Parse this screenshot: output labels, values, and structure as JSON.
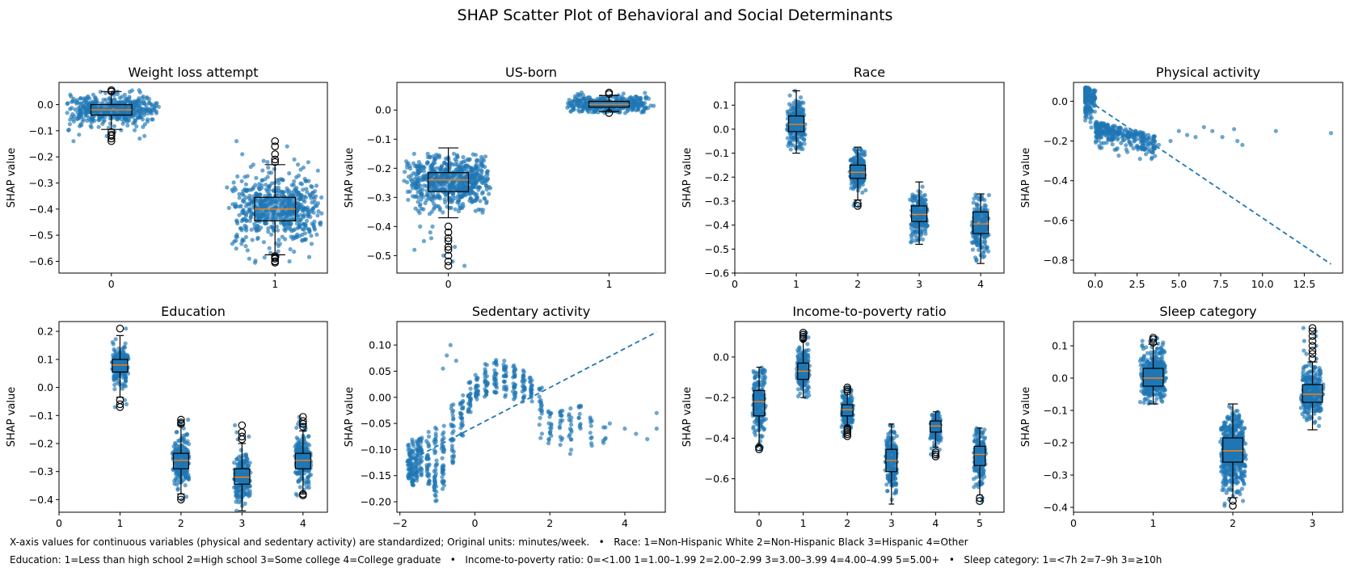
{
  "figure": {
    "title": "SHAP Scatter Plot of Behavioral and Social Determinants",
    "ylabel": "SHAP value",
    "footnote_line1": "X-axis values for continuous variables (physical and sedentary activity) are standardized; Original units: minutes/week.   •   Race: 1=Non-Hispanic White 2=Non-Hispanic Black 3=Hispanic 4=Other",
    "footnote_line2": "Education: 1=Less than high school 2=High school 3=Some college 4=College graduate   •   Income-to-poverty ratio: 0=<1.00 1=1.00–1.99 2=2.00–2.99 3=3.00–3.99 4=4.00–4.99 5=5.00+   •   Sleep category: 1=<7h 2=7–9h 3=≥10h"
  },
  "colors": {
    "points": "#1f77b4",
    "median": "#ff7f0e",
    "box": "#000000"
  },
  "chart_data": [
    {
      "type": "scatter",
      "subtype": "box-jitter",
      "title": "Weight loss attempt",
      "xlim": [
        -0.32,
        1.32
      ],
      "ylim": [
        -0.645,
        0.085
      ],
      "xticks": [
        0,
        1
      ],
      "xtick_labels": [
        "0",
        "1"
      ],
      "yticks": [
        0.0,
        -0.1,
        -0.2,
        -0.3,
        -0.4,
        -0.5,
        -0.6
      ],
      "ytick_labels": [
        "0.0",
        "−0.1",
        "−0.2",
        "−0.3",
        "−0.4",
        "−0.5",
        "−0.6"
      ],
      "groups": [
        {
          "x": 0,
          "median": -0.02,
          "q1": -0.04,
          "q3": 0.0,
          "whisker_low": -0.095,
          "whisker_high": 0.05,
          "pt_min": -0.135,
          "pt_max": 0.06,
          "count": 450,
          "jitter": 0.3,
          "out_low": [
            -0.12,
            -0.13,
            -0.14,
            -0.115,
            -0.105
          ],
          "out_high": [
            0.055,
            0.05
          ]
        },
        {
          "x": 1,
          "median": -0.4,
          "q1": -0.445,
          "q3": -0.355,
          "whisker_low": -0.575,
          "whisker_high": -0.23,
          "pt_min": -0.61,
          "pt_max": -0.14,
          "count": 550,
          "jitter": 0.3,
          "out_low": [
            -0.58,
            -0.59,
            -0.6,
            -0.605,
            -0.585
          ],
          "out_high": [
            -0.14,
            -0.16,
            -0.19,
            -0.21,
            -0.22
          ]
        }
      ]
    },
    {
      "type": "scatter",
      "subtype": "box-jitter",
      "title": "US-born",
      "xlim": [
        -0.32,
        1.35
      ],
      "ylim": [
        -0.56,
        0.095
      ],
      "xticks": [
        0,
        1
      ],
      "xtick_labels": [
        "0",
        "1"
      ],
      "yticks": [
        0.0,
        -0.1,
        -0.2,
        -0.3,
        -0.4,
        -0.5
      ],
      "ytick_labels": [
        "0.0",
        "−0.1",
        "−0.2",
        "−0.3",
        "−0.4",
        "−0.5"
      ],
      "groups": [
        {
          "x": 0,
          "median": -0.24,
          "q1": -0.28,
          "q3": -0.215,
          "whisker_low": -0.37,
          "whisker_high": -0.13,
          "pt_min": -0.53,
          "pt_max": -0.15,
          "count": 600,
          "jitter": 0.28,
          "out_low": [
            -0.4,
            -0.42,
            -0.44,
            -0.45,
            -0.47,
            -0.48,
            -0.5,
            -0.52,
            -0.535
          ],
          "out_high": []
        },
        {
          "x": 1,
          "median": 0.02,
          "q1": 0.01,
          "q3": 0.03,
          "whisker_low": -0.005,
          "whisker_high": 0.05,
          "pt_min": -0.01,
          "pt_max": 0.06,
          "count": 400,
          "jitter": 0.28,
          "out_low": [
            -0.01
          ],
          "out_high": [
            0.055,
            0.06
          ]
        }
      ]
    },
    {
      "type": "scatter",
      "subtype": "box-jitter",
      "title": "Race",
      "xlim": [
        0,
        4.38
      ],
      "ylim": [
        -0.6,
        0.195
      ],
      "xticks": [
        0,
        1,
        2,
        3,
        4
      ],
      "xtick_labels": [
        "0",
        "1",
        "2",
        "3",
        "4"
      ],
      "yticks": [
        0.1,
        0.0,
        -0.1,
        -0.2,
        -0.3,
        -0.4,
        -0.5,
        -0.6
      ],
      "ytick_labels": [
        "0.1",
        "0.0",
        "−0.1",
        "−0.2",
        "−0.3",
        "−0.4",
        "−0.5",
        "−0.6"
      ],
      "groups": [
        {
          "x": 1,
          "median": 0.02,
          "q1": -0.01,
          "q3": 0.055,
          "whisker_low": -0.1,
          "whisker_high": 0.16,
          "pt_min": -0.1,
          "pt_max": 0.16,
          "count": 260,
          "jitter": 0.16,
          "out_low": [],
          "out_high": []
        },
        {
          "x": 2,
          "median": -0.18,
          "q1": -0.205,
          "q3": -0.15,
          "whisker_low": -0.295,
          "whisker_high": -0.075,
          "pt_min": -0.32,
          "pt_max": -0.07,
          "count": 220,
          "jitter": 0.14,
          "out_low": [
            -0.31,
            -0.32
          ],
          "out_high": []
        },
        {
          "x": 3,
          "median": -0.355,
          "q1": -0.385,
          "q3": -0.32,
          "whisker_low": -0.48,
          "whisker_high": -0.22,
          "pt_min": -0.48,
          "pt_max": -0.22,
          "count": 220,
          "jitter": 0.15,
          "out_low": [],
          "out_high": []
        },
        {
          "x": 4,
          "median": -0.395,
          "q1": -0.435,
          "q3": -0.345,
          "whisker_low": -0.56,
          "whisker_high": -0.27,
          "pt_min": -0.56,
          "pt_max": -0.27,
          "count": 200,
          "jitter": 0.15,
          "out_low": [],
          "out_high": []
        }
      ]
    },
    {
      "type": "scatter",
      "subtype": "trend",
      "title": "Physical activity",
      "xlim": [
        -1.3,
        14.8
      ],
      "ylim": [
        -0.865,
        0.095
      ],
      "xticks": [
        0,
        2.5,
        5,
        7.5,
        10,
        12.5
      ],
      "xtick_labels": [
        "0.0",
        "2.5",
        "5.0",
        "7.5",
        "10.0",
        "12.5"
      ],
      "yticks": [
        0.0,
        -0.2,
        -0.4,
        -0.6,
        -0.8
      ],
      "ytick_labels": [
        "0.0",
        "−0.2",
        "−0.4",
        "−0.6",
        "−0.8"
      ],
      "trend": {
        "x": [
          0.0,
          14.1
        ],
        "y": [
          -0.02,
          -0.82
        ]
      },
      "points": [
        [
          -0.5,
          0.06
        ],
        [
          -0.4,
          0.03
        ],
        [
          -0.3,
          0.0
        ],
        [
          -0.2,
          -0.05
        ],
        [
          0.1,
          -0.12
        ],
        [
          0.5,
          -0.15
        ],
        [
          1.0,
          -0.18
        ],
        [
          2.0,
          -0.18
        ],
        [
          3.0,
          -0.17
        ],
        [
          3.8,
          -0.22
        ],
        [
          4.5,
          -0.2
        ],
        [
          5.0,
          -0.15
        ],
        [
          5.5,
          -0.17
        ],
        [
          6.0,
          -0.18
        ],
        [
          6.5,
          -0.13
        ],
        [
          7.0,
          -0.15
        ],
        [
          7.6,
          -0.18
        ],
        [
          8.3,
          -0.14
        ],
        [
          8.5,
          -0.2
        ],
        [
          8.8,
          -0.22
        ],
        [
          10.8,
          -0.15
        ],
        [
          14.1,
          -0.16
        ]
      ]
    },
    {
      "type": "scatter",
      "subtype": "box-jitter",
      "title": "Education",
      "xlim": [
        0,
        4.4
      ],
      "ylim": [
        -0.445,
        0.235
      ],
      "xticks": [
        0,
        1,
        2,
        3,
        4
      ],
      "xtick_labels": [
        "0",
        "1",
        "2",
        "3",
        "4"
      ],
      "yticks": [
        0.2,
        0.1,
        0.0,
        -0.1,
        -0.2,
        -0.3,
        -0.4
      ],
      "ytick_labels": [
        "0.2",
        "0.1",
        "0.0",
        "−0.1",
        "−0.2",
        "−0.3",
        "−0.4"
      ],
      "groups": [
        {
          "x": 1,
          "median": 0.08,
          "q1": 0.055,
          "q3": 0.1,
          "whisker_low": -0.035,
          "whisker_high": 0.185,
          "pt_min": -0.07,
          "pt_max": 0.21,
          "count": 230,
          "jitter": 0.15,
          "out_low": [
            -0.045,
            -0.06,
            -0.07
          ],
          "out_high": [
            0.21
          ]
        },
        {
          "x": 2,
          "median": -0.26,
          "q1": -0.29,
          "q3": -0.235,
          "whisker_low": -0.38,
          "whisker_high": -0.135,
          "pt_min": -0.4,
          "pt_max": -0.115,
          "count": 230,
          "jitter": 0.15,
          "out_low": [
            -0.39,
            -0.4
          ],
          "out_high": [
            -0.115,
            -0.125,
            -0.13
          ]
        },
        {
          "x": 3,
          "median": -0.32,
          "q1": -0.345,
          "q3": -0.29,
          "whisker_low": -0.44,
          "whisker_high": -0.2,
          "pt_min": -0.44,
          "pt_max": -0.135,
          "count": 230,
          "jitter": 0.15,
          "out_low": [],
          "out_high": [
            -0.135,
            -0.16,
            -0.175,
            -0.185
          ]
        },
        {
          "x": 4,
          "median": -0.26,
          "q1": -0.29,
          "q3": -0.235,
          "whisker_low": -0.38,
          "whisker_high": -0.155,
          "pt_min": -0.385,
          "pt_max": -0.105,
          "count": 230,
          "jitter": 0.15,
          "out_low": [
            -0.38,
            -0.385
          ],
          "out_high": [
            -0.105,
            -0.12,
            -0.13,
            -0.14
          ]
        }
      ]
    },
    {
      "type": "scatter",
      "subtype": "trend",
      "title": "Sedentary activity",
      "xlim": [
        -2.08,
        5.08
      ],
      "ylim": [
        -0.22,
        0.145
      ],
      "xticks": [
        -2,
        0,
        2,
        4
      ],
      "xtick_labels": [
        "−2",
        "0",
        "2",
        "4"
      ],
      "yticks": [
        0.1,
        0.05,
        0.0,
        -0.05,
        -0.1,
        -0.15,
        -0.2
      ],
      "ytick_labels": [
        "0.10",
        "0.05",
        "0.00",
        "−0.05",
        "−0.10",
        "−0.15",
        "−0.20"
      ],
      "trend": {
        "x": [
          -1.85,
          4.85
        ],
        "y": [
          -0.125,
          0.125
        ]
      },
      "columns": [
        {
          "x": -1.75,
          "ymin": -0.16,
          "ymax": -0.09,
          "n": 34
        },
        {
          "x": -1.65,
          "ymin": -0.17,
          "ymax": -0.08,
          "n": 34
        },
        {
          "x": -1.55,
          "ymin": -0.16,
          "ymax": -0.07,
          "n": 34
        },
        {
          "x": -1.45,
          "ymin": -0.15,
          "ymax": -0.075,
          "n": 30
        },
        {
          "x": -1.25,
          "ymin": -0.17,
          "ymax": -0.065,
          "n": 30
        },
        {
          "x": -1.05,
          "ymin": -0.2,
          "ymax": -0.055,
          "n": 38
        },
        {
          "x": -0.85,
          "ymin": -0.18,
          "ymax": -0.05,
          "n": 34
        },
        {
          "x": -0.6,
          "ymin": -0.13,
          "ymax": -0.01,
          "n": 30
        },
        {
          "x": -0.35,
          "ymin": -0.075,
          "ymax": 0.005,
          "n": 26
        },
        {
          "x": -0.15,
          "ymin": -0.03,
          "ymax": 0.03,
          "n": 24
        },
        {
          "x": 0.05,
          "ymin": -0.005,
          "ymax": 0.045,
          "n": 24
        },
        {
          "x": 0.3,
          "ymin": 0.0,
          "ymax": 0.065,
          "n": 26
        },
        {
          "x": 0.55,
          "ymin": 0.005,
          "ymax": 0.075,
          "n": 26
        },
        {
          "x": 0.8,
          "ymin": 0.0,
          "ymax": 0.07,
          "n": 26
        },
        {
          "x": 1.05,
          "ymin": -0.005,
          "ymax": 0.065,
          "n": 26
        },
        {
          "x": 1.3,
          "ymin": -0.01,
          "ymax": 0.055,
          "n": 24
        },
        {
          "x": 1.5,
          "ymin": -0.01,
          "ymax": 0.04,
          "n": 20
        },
        {
          "x": 1.75,
          "ymin": -0.085,
          "ymax": 0.02,
          "n": 20
        },
        {
          "x": 2.0,
          "ymin": -0.09,
          "ymax": -0.02,
          "n": 18
        },
        {
          "x": 2.3,
          "ymin": -0.1,
          "ymax": -0.005,
          "n": 16
        },
        {
          "x": 2.55,
          "ymin": -0.11,
          "ymax": -0.02,
          "n": 16
        },
        {
          "x": 2.8,
          "ymin": -0.09,
          "ymax": -0.015,
          "n": 12
        },
        {
          "x": 3.1,
          "ymin": -0.1,
          "ymax": -0.03,
          "n": 10
        },
        {
          "x": 3.45,
          "ymin": -0.09,
          "ymax": -0.05,
          "n": 6
        }
      ],
      "points": [
        [
          -0.85,
          0.055
        ],
        [
          -0.75,
          0.08
        ],
        [
          -0.65,
          0.1
        ],
        [
          -0.5,
          0.07
        ],
        [
          3.6,
          -0.05
        ],
        [
          4.0,
          -0.06
        ],
        [
          4.3,
          -0.07
        ],
        [
          4.6,
          -0.08
        ],
        [
          4.85,
          -0.03
        ],
        [
          4.85,
          -0.06
        ]
      ]
    },
    {
      "type": "scatter",
      "subtype": "box-jitter",
      "title": "Income-to-poverty ratio",
      "xlim": [
        -0.55,
        5.55
      ],
      "ylim": [
        -0.765,
        0.175
      ],
      "xticks": [
        0,
        1,
        2,
        3,
        4,
        5
      ],
      "xtick_labels": [
        "0",
        "1",
        "2",
        "3",
        "4",
        "5"
      ],
      "yticks": [
        0.0,
        -0.2,
        -0.4,
        -0.6
      ],
      "ytick_labels": [
        "0.0",
        "−0.2",
        "−0.4",
        "−0.6"
      ],
      "groups": [
        {
          "x": 0,
          "median": -0.22,
          "q1": -0.29,
          "q3": -0.165,
          "whisker_low": -0.435,
          "whisker_high": -0.05,
          "pt_min": -0.46,
          "pt_max": -0.05,
          "count": 200,
          "jitter": 0.16,
          "out_low": [
            -0.445,
            -0.455
          ],
          "out_high": []
        },
        {
          "x": 1,
          "median": -0.07,
          "q1": -0.11,
          "q3": -0.03,
          "whisker_low": -0.2,
          "whisker_high": 0.08,
          "pt_min": -0.2,
          "pt_max": 0.12,
          "count": 200,
          "jitter": 0.16,
          "out_low": [],
          "out_high": [
            0.09,
            0.1,
            0.11,
            0.12
          ]
        },
        {
          "x": 2,
          "median": -0.26,
          "q1": -0.29,
          "q3": -0.235,
          "whisker_low": -0.34,
          "whisker_high": -0.175,
          "pt_min": -0.39,
          "pt_max": -0.15,
          "count": 180,
          "jitter": 0.14,
          "out_low": [
            -0.35,
            -0.36,
            -0.37,
            -0.38,
            -0.39
          ],
          "out_high": [
            -0.15,
            -0.16,
            -0.17
          ]
        },
        {
          "x": 3,
          "median": -0.51,
          "q1": -0.565,
          "q3": -0.455,
          "whisker_low": -0.725,
          "whisker_high": -0.33,
          "pt_min": -0.725,
          "pt_max": -0.33,
          "count": 200,
          "jitter": 0.15,
          "out_low": [],
          "out_high": []
        },
        {
          "x": 4,
          "median": -0.34,
          "q1": -0.37,
          "q3": -0.315,
          "whisker_low": -0.445,
          "whisker_high": -0.27,
          "pt_min": -0.49,
          "pt_max": -0.27,
          "count": 150,
          "jitter": 0.14,
          "out_low": [
            -0.47,
            -0.48,
            -0.49
          ],
          "out_high": []
        },
        {
          "x": 5,
          "median": -0.48,
          "q1": -0.535,
          "q3": -0.44,
          "whisker_low": -0.68,
          "whisker_high": -0.35,
          "pt_min": -0.715,
          "pt_max": -0.35,
          "count": 180,
          "jitter": 0.15,
          "out_low": [
            -0.695,
            -0.71
          ],
          "out_high": []
        }
      ]
    },
    {
      "type": "scatter",
      "subtype": "box-jitter",
      "title": "Sleep category",
      "xlim": [
        0,
        3.38
      ],
      "ylim": [
        -0.415,
        0.175
      ],
      "xticks": [
        0,
        1,
        2,
        3
      ],
      "xtick_labels": [
        "0",
        "1",
        "2",
        "3"
      ],
      "yticks": [
        0.1,
        0.0,
        -0.1,
        -0.2,
        -0.3,
        -0.4
      ],
      "ytick_labels": [
        "0.1",
        "0.0",
        "−0.1",
        "−0.2",
        "−0.3",
        "−0.4"
      ],
      "groups": [
        {
          "x": 1,
          "median": 0.0,
          "q1": -0.025,
          "q3": 0.03,
          "whisker_low": -0.08,
          "whisker_high": 0.105,
          "pt_min": -0.085,
          "pt_max": 0.125,
          "count": 400,
          "jitter": 0.17,
          "out_low": [],
          "out_high": [
            0.11,
            0.12,
            0.125
          ]
        },
        {
          "x": 2,
          "median": -0.225,
          "q1": -0.26,
          "q3": -0.185,
          "whisker_low": -0.37,
          "whisker_high": -0.08,
          "pt_min": -0.395,
          "pt_max": -0.08,
          "count": 550,
          "jitter": 0.17,
          "out_low": [
            -0.38,
            -0.395
          ],
          "out_high": []
        },
        {
          "x": 3,
          "median": -0.05,
          "q1": -0.075,
          "q3": -0.02,
          "whisker_low": -0.16,
          "whisker_high": 0.05,
          "pt_min": -0.16,
          "pt_max": 0.155,
          "count": 300,
          "jitter": 0.15,
          "out_low": [],
          "out_high": [
            0.06,
            0.075,
            0.085,
            0.1,
            0.115,
            0.13,
            0.145,
            0.155
          ]
        }
      ]
    }
  ]
}
